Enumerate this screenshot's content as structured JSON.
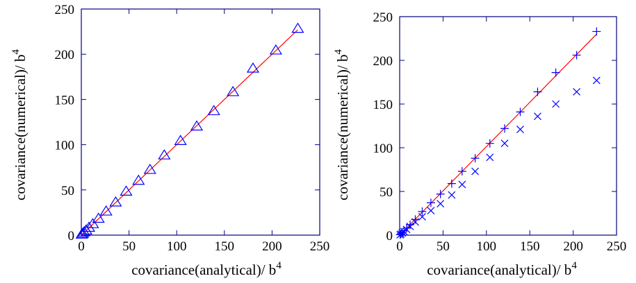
{
  "chart_data": [
    {
      "type": "scatter",
      "xlabel": "covariance(analytical)/ b",
      "xlabel_sup": "4",
      "ylabel": "covariance(numerical)/ b",
      "ylabel_sup": "4",
      "xlim": [
        0,
        250
      ],
      "ylim": [
        0,
        250
      ],
      "xticks": [
        0,
        50,
        100,
        150,
        200,
        250
      ],
      "yticks": [
        0,
        50,
        100,
        150,
        200,
        250
      ],
      "grid": false,
      "reference_line": {
        "x": [
          0,
          227
        ],
        "y": [
          0,
          227
        ],
        "color": "#ff0000"
      },
      "series": [
        {
          "marker": "triangle",
          "color": "#0000ff",
          "x": [
            0.5,
            1.5,
            3,
            5,
            8,
            12,
            18,
            26,
            36,
            47,
            60,
            72,
            87,
            104,
            121,
            139,
            159,
            180,
            204,
            227
          ],
          "y": [
            0.5,
            1.5,
            3,
            5,
            8,
            12,
            18,
            26,
            36,
            48,
            60,
            72,
            88,
            104,
            120,
            137,
            158,
            184,
            204,
            228
          ]
        }
      ]
    },
    {
      "type": "scatter",
      "xlabel": "covariance(analytical)/ b",
      "xlabel_sup": "4",
      "ylabel": "covariance(numerical)/ b",
      "ylabel_sup": "4",
      "xlim": [
        0,
        250
      ],
      "ylim": [
        0,
        250
      ],
      "xticks": [
        0,
        50,
        100,
        150,
        200,
        250
      ],
      "yticks": [
        0,
        50,
        100,
        150,
        200,
        250
      ],
      "grid": false,
      "reference_line": {
        "x": [
          0,
          227
        ],
        "y": [
          0,
          230
        ],
        "color": "#ff0000"
      },
      "series": [
        {
          "marker": "plus",
          "color": "#0000ff",
          "x": [
            0.5,
            1.5,
            3,
            5,
            8,
            12,
            18,
            26,
            36,
            47,
            60,
            72,
            87,
            104,
            121,
            139,
            159,
            180,
            204,
            227
          ],
          "y": [
            0.5,
            1.5,
            3,
            5,
            8,
            12,
            18,
            27,
            37,
            47,
            59,
            73,
            88,
            105,
            122,
            141,
            164,
            186,
            206,
            233
          ]
        },
        {
          "marker": "cross",
          "color": "#0000ff",
          "x": [
            0.5,
            1.5,
            3,
            5,
            8,
            12,
            18,
            26,
            36,
            47,
            60,
            72,
            87,
            104,
            121,
            139,
            159,
            180,
            204,
            227
          ],
          "y": [
            0.4,
            1.2,
            2.5,
            4,
            6.5,
            10,
            15,
            21,
            28,
            36,
            46,
            58,
            73,
            89,
            105,
            121,
            136,
            150,
            164,
            177
          ]
        }
      ]
    }
  ]
}
